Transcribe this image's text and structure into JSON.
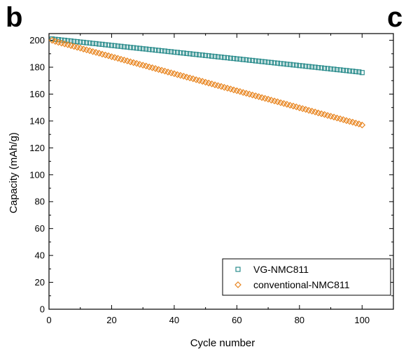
{
  "panel_letters": {
    "left": "b",
    "right": "c"
  },
  "chart_data": {
    "type": "scatter",
    "title": "",
    "xlabel": "Cycle number",
    "ylabel": "Capacity (mAh/g)",
    "xlim": [
      0,
      110
    ],
    "ylim": [
      0,
      205
    ],
    "x_ticks": [
      0,
      20,
      40,
      60,
      80,
      100
    ],
    "y_ticks": [
      0,
      20,
      40,
      60,
      80,
      100,
      120,
      140,
      160,
      180,
      200
    ],
    "grid": false,
    "legend_position": "bottom-right",
    "series": [
      {
        "name": "VG-NMC811",
        "marker": "square",
        "color": "#2a8c8c",
        "x_start": 1,
        "x_end": 100,
        "x_step": 1,
        "values": [
          201,
          200.7,
          200.5,
          200.2,
          200,
          199.7,
          199.5,
          199.2,
          199,
          198.7,
          198.5,
          198.2,
          198,
          197.7,
          197.5,
          197.2,
          197,
          196.7,
          196.5,
          196.2,
          196,
          195.7,
          195.5,
          195.2,
          195,
          194.7,
          194.5,
          194.2,
          194,
          193.7,
          193.5,
          193.2,
          193,
          192.7,
          192.5,
          192.2,
          192,
          191.7,
          191.5,
          191.2,
          191,
          190.7,
          190.5,
          190.2,
          190,
          189.7,
          189.5,
          189.2,
          189,
          188.7,
          188.5,
          188.2,
          188,
          187.7,
          187.5,
          187.2,
          187,
          186.7,
          186.5,
          186.2,
          186,
          185.7,
          185.5,
          185.2,
          185,
          184.7,
          184.5,
          184.2,
          184,
          183.7,
          183.5,
          183.2,
          183,
          182.7,
          182.5,
          182.2,
          182,
          181.7,
          181.5,
          181.2,
          181,
          180.7,
          180.5,
          180.2,
          180,
          179.7,
          179.5,
          179.2,
          179,
          178.7,
          178.5,
          178.2,
          178,
          177.7,
          177.5,
          177.2,
          177,
          176.7,
          176.5,
          176
        ]
      },
      {
        "name": "conventional-NMC811",
        "marker": "diamond",
        "color": "#e8841e",
        "x_start": 1,
        "x_end": 100,
        "x_step": 1,
        "values": [
          200,
          199.2,
          198.5,
          197.9,
          197.3,
          196.7,
          196.1,
          195.4,
          194.8,
          194.2,
          193.5,
          192.9,
          192.3,
          191.6,
          191,
          190.4,
          189.7,
          189.1,
          188.5,
          187.8,
          187.2,
          186.6,
          185.9,
          185.3,
          184.7,
          184,
          183.4,
          182.8,
          182.1,
          181.5,
          180.9,
          180.2,
          179.6,
          179,
          178.3,
          177.7,
          177.1,
          176.4,
          175.8,
          175.2,
          174.5,
          173.9,
          173.3,
          172.6,
          172,
          171.4,
          170.7,
          170.1,
          169.5,
          168.8,
          168.2,
          167.6,
          166.9,
          166.3,
          165.7,
          165,
          164.4,
          163.8,
          163.1,
          162.5,
          161.9,
          161.2,
          160.6,
          160,
          159.3,
          158.7,
          158.1,
          157.4,
          156.8,
          156.2,
          155.5,
          154.9,
          154.3,
          153.6,
          153,
          152.4,
          151.7,
          151.1,
          150.5,
          149.8,
          149.2,
          148.6,
          147.9,
          147.3,
          146.7,
          146,
          145.4,
          144.8,
          144.1,
          143.5,
          142.9,
          142.2,
          141.6,
          141,
          140.3,
          139.7,
          139.1,
          138.4,
          137.8,
          137
        ]
      }
    ]
  }
}
